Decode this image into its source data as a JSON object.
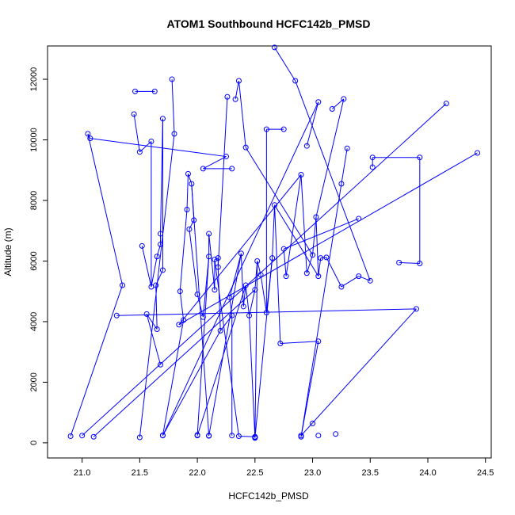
{
  "chart_data": {
    "type": "line",
    "title": "ATOM1 Southbound HCFC142b_PMSD",
    "xlabel": "HCFC142b_PMSD",
    "ylabel": "Altitude (m)",
    "xlim": [
      20.7,
      24.55
    ],
    "ylim": [
      -500,
      13100
    ],
    "xticks": [
      "21.0",
      "21.5",
      "22.0",
      "22.5",
      "23.0",
      "23.5",
      "24.0",
      "24.5"
    ],
    "yticks": [
      "0",
      "2000",
      "4000",
      "6000",
      "8000",
      "10000",
      "12000"
    ],
    "grid": false,
    "legend": "none",
    "series_color": "#0000ff",
    "points": [
      [
        21.05,
        10200
      ],
      [
        21.07,
        10050
      ],
      [
        21.35,
        5200
      ],
      [
        21.46,
        11600
      ],
      [
        21.63,
        11600
      ],
      [
        21.78,
        12000
      ],
      [
        21.8,
        10200
      ],
      [
        21.45,
        10850
      ],
      [
        21.5,
        9600
      ],
      [
        21.6,
        9950
      ],
      [
        22.25,
        9450
      ],
      [
        22.05,
        9050
      ],
      [
        22.3,
        9050
      ],
      [
        22.26,
        11420
      ],
      [
        22.33,
        11340
      ],
      [
        22.36,
        11950
      ],
      [
        22.42,
        9750
      ],
      [
        22.75,
        10350
      ],
      [
        22.6,
        10350
      ],
      [
        22.67,
        13050
      ],
      [
        22.85,
        11950
      ],
      [
        22.95,
        9800
      ],
      [
        23.05,
        11250
      ],
      [
        23.17,
        11020
      ],
      [
        23.27,
        11350
      ],
      [
        23.3,
        9720
      ],
      [
        23.25,
        8550
      ],
      [
        23.4,
        7400
      ],
      [
        23.52,
        9420
      ],
      [
        23.52,
        9100
      ],
      [
        23.93,
        9420
      ],
      [
        23.93,
        5920
      ],
      [
        23.75,
        5950
      ],
      [
        24.16,
        11200
      ],
      [
        24.43,
        9570
      ],
      [
        21.52,
        6500
      ],
      [
        21.6,
        5150
      ],
      [
        21.65,
        6150
      ],
      [
        21.68,
        6550
      ],
      [
        21.68,
        6900
      ],
      [
        21.7,
        10700
      ],
      [
        21.7,
        5700
      ],
      [
        21.64,
        5200
      ],
      [
        21.65,
        3750
      ],
      [
        21.56,
        4250
      ],
      [
        21.88,
        4050
      ],
      [
        21.85,
        5000
      ],
      [
        21.91,
        7700
      ],
      [
        21.92,
        8880
      ],
      [
        21.95,
        8550
      ],
      [
        21.97,
        7350
      ],
      [
        21.93,
        7050
      ],
      [
        22.0,
        4900
      ],
      [
        22.05,
        4150
      ],
      [
        22.1,
        6150
      ],
      [
        22.1,
        6900
      ],
      [
        22.15,
        5050
      ],
      [
        22.15,
        6050
      ],
      [
        22.18,
        6100
      ],
      [
        22.18,
        5800
      ],
      [
        22.2,
        3700
      ],
      [
        22.3,
        4200
      ],
      [
        22.28,
        4800
      ],
      [
        22.38,
        6250
      ],
      [
        22.4,
        4500
      ],
      [
        22.42,
        5200
      ],
      [
        22.45,
        4200
      ],
      [
        22.5,
        5050
      ],
      [
        22.52,
        6000
      ],
      [
        22.55,
        5550
      ],
      [
        22.6,
        4300
      ],
      [
        22.65,
        6100
      ],
      [
        22.67,
        7850
      ],
      [
        22.72,
        3280
      ],
      [
        22.75,
        6400
      ],
      [
        22.77,
        5500
      ],
      [
        22.9,
        8850
      ],
      [
        22.95,
        5600
      ],
      [
        23.0,
        6200
      ],
      [
        23.03,
        7450
      ],
      [
        23.05,
        5500
      ],
      [
        23.07,
        6100
      ],
      [
        23.12,
        6120
      ],
      [
        23.25,
        5150
      ],
      [
        23.4,
        5500
      ],
      [
        23.5,
        5350
      ],
      [
        23.05,
        3350
      ],
      [
        23.9,
        4420
      ],
      [
        20.9,
        220
      ],
      [
        21.0,
        240
      ],
      [
        21.1,
        200
      ],
      [
        21.3,
        4200
      ],
      [
        21.5,
        180
      ],
      [
        21.68,
        2580
      ],
      [
        21.7,
        250
      ],
      [
        21.7,
        240
      ],
      [
        21.84,
        3900
      ],
      [
        22.0,
        260
      ],
      [
        22.0,
        240
      ],
      [
        22.1,
        240
      ],
      [
        22.1,
        230
      ],
      [
        22.3,
        240
      ],
      [
        22.36,
        220
      ],
      [
        22.5,
        200
      ],
      [
        22.5,
        180
      ],
      [
        22.5,
        160
      ],
      [
        22.9,
        240
      ],
      [
        22.9,
        200
      ],
      [
        23.0,
        640
      ],
      [
        23.05,
        240
      ],
      [
        23.2,
        290
      ]
    ],
    "segments": [
      [
        0,
        1
      ],
      [
        1,
        10
      ],
      [
        0,
        2
      ],
      [
        2,
        88
      ],
      [
        3,
        4
      ],
      [
        5,
        6
      ],
      [
        6,
        92
      ],
      [
        7,
        8
      ],
      [
        8,
        9
      ],
      [
        9,
        36
      ],
      [
        10,
        11
      ],
      [
        11,
        12
      ],
      [
        13,
        59
      ],
      [
        14,
        15
      ],
      [
        15,
        16
      ],
      [
        16,
        78
      ],
      [
        17,
        18
      ],
      [
        18,
        70
      ],
      [
        19,
        20
      ],
      [
        20,
        85
      ],
      [
        21,
        22
      ],
      [
        22,
        95
      ],
      [
        23,
        24
      ],
      [
        24,
        79
      ],
      [
        25,
        26
      ],
      [
        26,
        107
      ],
      [
        27,
        74
      ],
      [
        28,
        29
      ],
      [
        28,
        30
      ],
      [
        30,
        31
      ],
      [
        31,
        32
      ],
      [
        33,
        89
      ],
      [
        34,
        96
      ],
      [
        35,
        36
      ],
      [
        36,
        37
      ],
      [
        37,
        38
      ],
      [
        38,
        39
      ],
      [
        39,
        40
      ],
      [
        40,
        41
      ],
      [
        41,
        42
      ],
      [
        42,
        43
      ],
      [
        43,
        44
      ],
      [
        44,
        93
      ],
      [
        45,
        46
      ],
      [
        46,
        47
      ],
      [
        47,
        48
      ],
      [
        48,
        49
      ],
      [
        49,
        50
      ],
      [
        50,
        51
      ],
      [
        51,
        52
      ],
      [
        52,
        53
      ],
      [
        53,
        54
      ],
      [
        54,
        55
      ],
      [
        55,
        56
      ],
      [
        56,
        57
      ],
      [
        57,
        58
      ],
      [
        58,
        59
      ],
      [
        59,
        60
      ],
      [
        60,
        61
      ],
      [
        61,
        62
      ],
      [
        62,
        63
      ],
      [
        63,
        64
      ],
      [
        64,
        65
      ],
      [
        65,
        66
      ],
      [
        66,
        67
      ],
      [
        67,
        68
      ],
      [
        68,
        69
      ],
      [
        69,
        70
      ],
      [
        70,
        71
      ],
      [
        71,
        72
      ],
      [
        72,
        73
      ],
      [
        73,
        86
      ],
      [
        72,
        80
      ],
      [
        74,
        75
      ],
      [
        75,
        76
      ],
      [
        76,
        77
      ],
      [
        77,
        78
      ],
      [
        78,
        79
      ],
      [
        79,
        80
      ],
      [
        80,
        81
      ],
      [
        81,
        82
      ],
      [
        82,
        83
      ],
      [
        83,
        84
      ],
      [
        84,
        85
      ],
      [
        86,
        107
      ],
      [
        87,
        106
      ],
      [
        91,
        87
      ],
      [
        97,
        54
      ],
      [
        98,
        65
      ],
      [
        99,
        49
      ],
      [
        100,
        63
      ],
      [
        101,
        61
      ],
      [
        102,
        57
      ],
      [
        103,
        68
      ],
      [
        104,
        66
      ],
      [
        105,
        71
      ],
      [
        90,
        67
      ],
      [
        94,
        45
      ],
      [
        95,
        60
      ],
      [
        96,
        76
      ],
      [
        97,
        98
      ],
      [
        99,
        100
      ],
      [
        102,
        103
      ]
    ]
  }
}
